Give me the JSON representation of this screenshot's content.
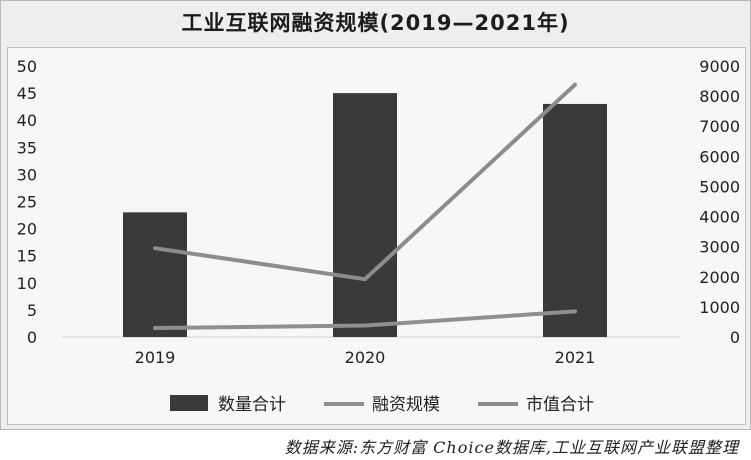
{
  "chart_data": {
    "type": "bar",
    "title": "工业互联网融资规模(2019—2021年)",
    "categories": [
      "2019",
      "2020",
      "2021"
    ],
    "y_left": {
      "range": [
        0,
        50
      ],
      "ticks": [
        "0",
        "5",
        "10",
        "15",
        "20",
        "25",
        "30",
        "35",
        "40",
        "45",
        "50"
      ]
    },
    "y_right": {
      "range": [
        0,
        9000
      ],
      "ticks": [
        "0",
        "1000",
        "2000",
        "3000",
        "4000",
        "5000",
        "6000",
        "7000",
        "8000",
        "9000"
      ]
    },
    "series": [
      {
        "name": "数量合计",
        "type": "bar",
        "axis": "left",
        "color": "#3a3a3a",
        "values": [
          23,
          45,
          43
        ]
      },
      {
        "name": "融资规模",
        "type": "line",
        "axis": "right",
        "color": "#8f8f8f",
        "values": [
          300,
          380,
          850
        ]
      },
      {
        "name": "市值合计",
        "type": "line",
        "axis": "right",
        "color": "#8c8c8c",
        "values": [
          2950,
          1920,
          8380
        ]
      }
    ],
    "legend_position": "bottom",
    "grid": false
  },
  "source": "数据来源:东方财富 Choice数据库,工业互联网产业联盟整理"
}
